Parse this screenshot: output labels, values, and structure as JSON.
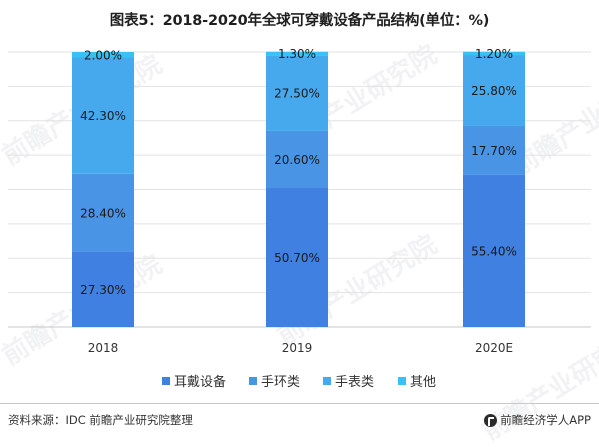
{
  "title": "图表5：2018-2020年全球可穿戴设备产品结构(单位：%)",
  "footer": {
    "source": "资料来源：IDC 前瞻产业研究院整理",
    "brand": "前瞻经济学人APP"
  },
  "watermark": "前瞻产业研究院",
  "chart_data": {
    "type": "bar",
    "stacked": true,
    "categories": [
      "2018",
      "2019",
      "2020E"
    ],
    "series": [
      {
        "name": "耳戴设备",
        "values": [
          27.3,
          50.7,
          55.4
        ],
        "labels": [
          "27.30%",
          "50.70%",
          "55.40%"
        ],
        "color": "#3f80e0"
      },
      {
        "name": "手环类",
        "values": [
          28.4,
          20.6,
          17.7
        ],
        "labels": [
          "28.40%",
          "20.60%",
          "17.70%"
        ],
        "color": "#4a94e6"
      },
      {
        "name": "手表类",
        "values": [
          42.3,
          27.5,
          25.8
        ],
        "labels": [
          "42.30%",
          "27.50%",
          "25.80%"
        ],
        "color": "#46a9ee"
      },
      {
        "name": "其他",
        "values": [
          2.0,
          1.3,
          1.2
        ],
        "labels": [
          "2.00%",
          "1.30%",
          "1.20%"
        ],
        "color": "#37c2f3"
      }
    ],
    "ylim": [
      0,
      100
    ],
    "grid": true,
    "legend_position": "bottom"
  }
}
